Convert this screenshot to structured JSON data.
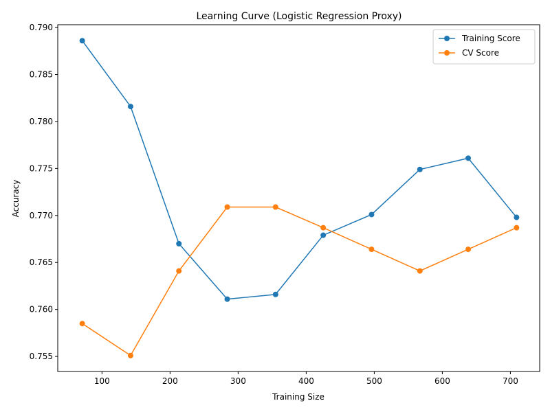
{
  "chart_data": {
    "type": "line",
    "title": "Learning Curve (Logistic Regression Proxy)",
    "xlabel": "Training Size",
    "ylabel": "Accuracy",
    "xlim": [
      35,
      743
    ],
    "ylim": [
      0.7534,
      0.7903
    ],
    "xticks": [
      100,
      200,
      300,
      400,
      500,
      600,
      700
    ],
    "yticks": [
      0.755,
      0.76,
      0.765,
      0.77,
      0.775,
      0.78,
      0.785,
      0.79
    ],
    "legend_position": "top-right",
    "grid": false,
    "x": [
      71,
      142,
      213,
      284,
      355,
      425,
      496,
      567,
      638,
      709
    ],
    "series": [
      {
        "name": "Training Score",
        "color": "#1f77b4",
        "values": [
          0.7886,
          0.7816,
          0.767,
          0.7611,
          0.7616,
          0.7679,
          0.7701,
          0.7749,
          0.7761,
          0.7698
        ]
      },
      {
        "name": "CV Score",
        "color": "#ff7f0e",
        "values": [
          0.7585,
          0.7551,
          0.7641,
          0.7709,
          0.7709,
          0.7687,
          0.7664,
          0.7641,
          0.7664,
          0.7687
        ]
      }
    ]
  }
}
